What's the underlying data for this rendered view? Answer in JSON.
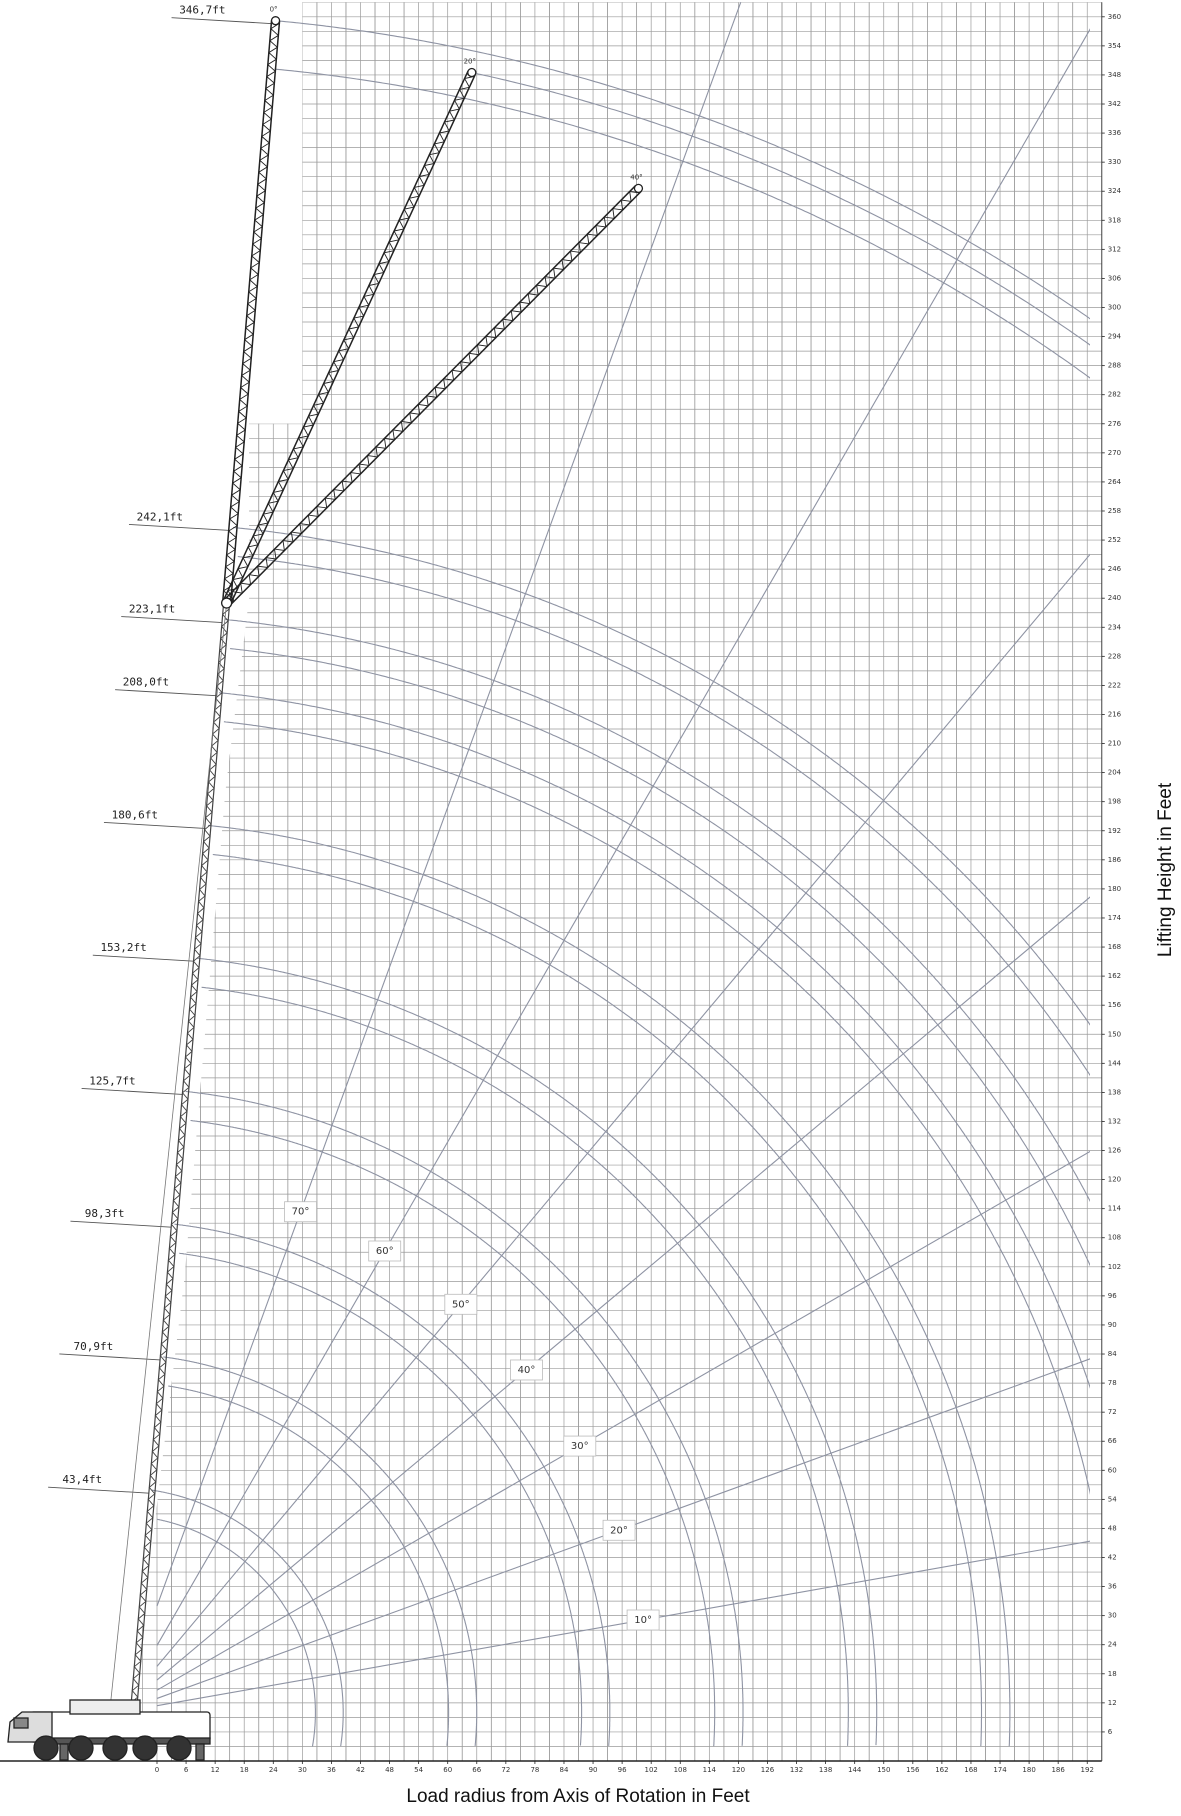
{
  "y_axis": {
    "title": "Lifting Height in Feet",
    "ticks": [
      6,
      12,
      18,
      24,
      30,
      36,
      42,
      48,
      54,
      60,
      66,
      72,
      78,
      84,
      90,
      96,
      102,
      108,
      114,
      120,
      126,
      132,
      138,
      144,
      150,
      156,
      162,
      168,
      174,
      180,
      186,
      192,
      198,
      204,
      210,
      216,
      222,
      228,
      234,
      240,
      246,
      252,
      258,
      264,
      270,
      276,
      282,
      288,
      294,
      300,
      306,
      312,
      318,
      324,
      330,
      336,
      342,
      348,
      354,
      360
    ]
  },
  "x_axis": {
    "title": "Load radius from Axis of Rotation in Feet",
    "ticks": [
      0,
      6,
      12,
      18,
      24,
      30,
      36,
      42,
      48,
      54,
      60,
      66,
      72,
      78,
      84,
      90,
      96,
      102,
      108,
      114,
      120,
      126,
      132,
      138,
      144,
      150,
      156,
      162,
      168,
      174,
      180,
      186,
      192
    ]
  },
  "boom_lengths": [
    "43,4ft",
    "70,9ft",
    "98,3ft",
    "125,7ft",
    "153,2ft",
    "180,6ft",
    "208,0ft",
    "223,1ft",
    "242,1ft",
    "346,7ft"
  ],
  "boom_angles": [
    "10°",
    "20°",
    "30°",
    "40°",
    "50°",
    "60°",
    "70°"
  ],
  "jib_offsets": [
    "0°",
    "20°",
    "40°"
  ]
}
